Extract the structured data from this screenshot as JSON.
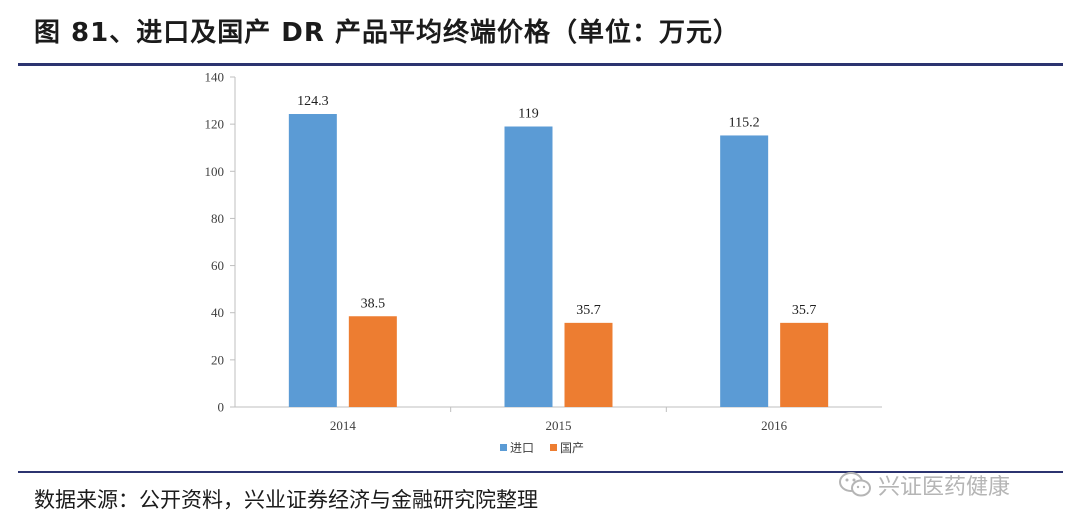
{
  "header": {
    "title": "图 81、进口及国产 DR 产品平均终端价格（单位：万元）"
  },
  "footer": {
    "source": "数据来源：公开资料，兴业证券经济与金融研究院整理",
    "watermark": "兴证医药健康",
    "watermark_icon": "wechat-icon"
  },
  "colors": {
    "imported": "#5b9bd5",
    "domestic": "#ed7d31",
    "rule": "#2c3470"
  },
  "chart_data": {
    "type": "bar",
    "title": "图 81、进口及国产 DR 产品平均终端价格（单位：万元）",
    "xlabel": "",
    "ylabel": "",
    "categories": [
      "2014",
      "2015",
      "2016"
    ],
    "series": [
      {
        "name": "进口",
        "values": [
          124.3,
          119,
          115.2
        ],
        "labels": [
          "124.3",
          "119",
          "115.2"
        ]
      },
      {
        "name": "国产",
        "values": [
          38.5,
          35.7,
          35.7
        ],
        "labels": [
          "38.5",
          "35.7",
          "35.7"
        ]
      }
    ],
    "ylim": [
      0,
      140
    ],
    "yticks": [
      0,
      20,
      40,
      60,
      80,
      100,
      120,
      140
    ],
    "grid": false,
    "legend": "bottom-center"
  }
}
